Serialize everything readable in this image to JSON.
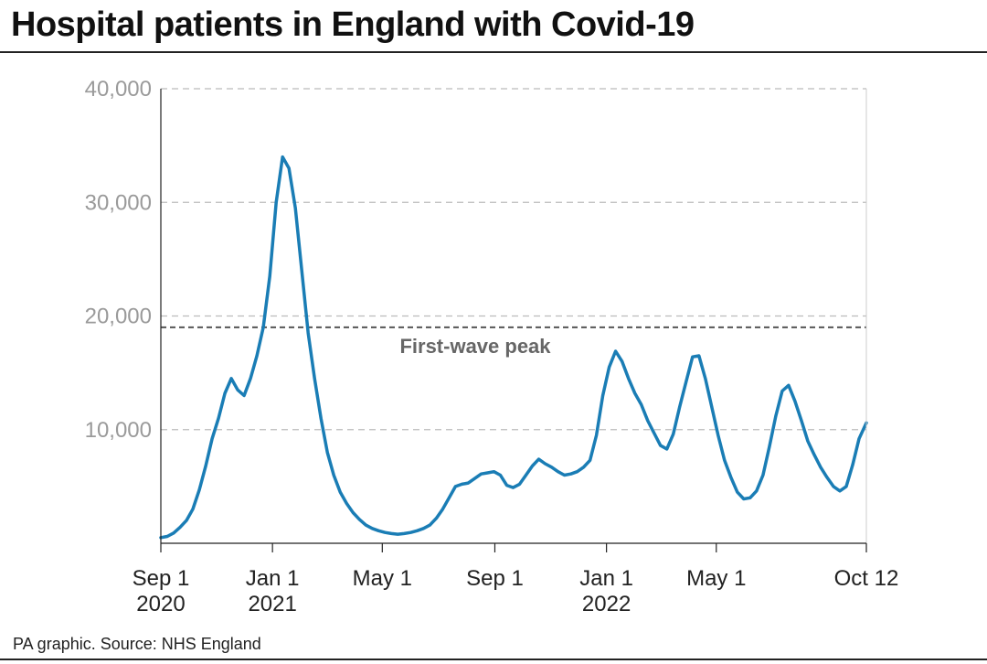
{
  "page": {
    "title": "Hospital patients in England with Covid-19",
    "source": "PA graphic. Source: NHS England"
  },
  "colors": {
    "line": "#1a7db5",
    "grid": "#bbbbbb",
    "reference": "#555555"
  },
  "chart_data": {
    "type": "line",
    "title": "Hospital patients in England with Covid-19",
    "xlabel": "",
    "ylabel": "",
    "ylim": [
      0,
      40000
    ],
    "xlim": [
      "2020-09-01",
      "2022-10-12"
    ],
    "y_ticks": [
      {
        "value": 10000,
        "label": "10,000"
      },
      {
        "value": 20000,
        "label": "20,000"
      },
      {
        "value": 30000,
        "label": "30,000"
      },
      {
        "value": 40000,
        "label": "40,000"
      }
    ],
    "x_ticks": [
      {
        "date": "2020-09-01",
        "lines": [
          "Sep 1",
          "2020"
        ]
      },
      {
        "date": "2021-01-01",
        "lines": [
          "Jan 1",
          "2021"
        ]
      },
      {
        "date": "2021-05-01",
        "lines": [
          "May 1"
        ]
      },
      {
        "date": "2021-09-01",
        "lines": [
          "Sep 1"
        ]
      },
      {
        "date": "2022-01-01",
        "lines": [
          "Jan 1",
          "2022"
        ]
      },
      {
        "date": "2022-05-01",
        "lines": [
          "May 1"
        ]
      },
      {
        "date": "2022-10-12",
        "lines": [
          "Oct 12"
        ]
      }
    ],
    "grid": true,
    "reference_line": {
      "value": 19000,
      "label": "First-wave peak"
    },
    "series": [
      {
        "points": [
          [
            "2020-09-01",
            500
          ],
          [
            "2020-09-08",
            600
          ],
          [
            "2020-09-15",
            900
          ],
          [
            "2020-09-22",
            1400
          ],
          [
            "2020-09-29",
            2000
          ],
          [
            "2020-10-06",
            3000
          ],
          [
            "2020-10-13",
            4700
          ],
          [
            "2020-10-20",
            6800
          ],
          [
            "2020-10-27",
            9200
          ],
          [
            "2020-11-03",
            11000
          ],
          [
            "2020-11-10",
            13200
          ],
          [
            "2020-11-17",
            14500
          ],
          [
            "2020-11-24",
            13500
          ],
          [
            "2020-12-01",
            13000
          ],
          [
            "2020-12-08",
            14500
          ],
          [
            "2020-12-15",
            16500
          ],
          [
            "2020-12-22",
            19000
          ],
          [
            "2020-12-29",
            23500
          ],
          [
            "2021-01-05",
            30000
          ],
          [
            "2021-01-12",
            34000
          ],
          [
            "2021-01-19",
            33000
          ],
          [
            "2021-01-26",
            29500
          ],
          [
            "2021-02-02",
            24000
          ],
          [
            "2021-02-09",
            18500
          ],
          [
            "2021-02-16",
            14500
          ],
          [
            "2021-02-23",
            11000
          ],
          [
            "2021-03-02",
            8000
          ],
          [
            "2021-03-09",
            6000
          ],
          [
            "2021-03-16",
            4500
          ],
          [
            "2021-03-23",
            3500
          ],
          [
            "2021-03-30",
            2700
          ],
          [
            "2021-04-06",
            2100
          ],
          [
            "2021-04-13",
            1600
          ],
          [
            "2021-04-20",
            1300
          ],
          [
            "2021-04-27",
            1100
          ],
          [
            "2021-05-04",
            950
          ],
          [
            "2021-05-11",
            850
          ],
          [
            "2021-05-18",
            800
          ],
          [
            "2021-05-25",
            850
          ],
          [
            "2021-06-01",
            950
          ],
          [
            "2021-06-08",
            1100
          ],
          [
            "2021-06-15",
            1300
          ],
          [
            "2021-06-22",
            1600
          ],
          [
            "2021-06-29",
            2200
          ],
          [
            "2021-07-06",
            3000
          ],
          [
            "2021-07-13",
            4000
          ],
          [
            "2021-07-20",
            5000
          ],
          [
            "2021-07-27",
            5200
          ],
          [
            "2021-08-03",
            5300
          ],
          [
            "2021-08-10",
            5700
          ],
          [
            "2021-08-17",
            6100
          ],
          [
            "2021-08-24",
            6200
          ],
          [
            "2021-08-31",
            6300
          ],
          [
            "2021-09-07",
            6000
          ],
          [
            "2021-09-14",
            5100
          ],
          [
            "2021-09-21",
            4900
          ],
          [
            "2021-09-28",
            5200
          ],
          [
            "2021-10-05",
            6000
          ],
          [
            "2021-10-12",
            6800
          ],
          [
            "2021-10-19",
            7400
          ],
          [
            "2021-10-26",
            7000
          ],
          [
            "2021-11-02",
            6700
          ],
          [
            "2021-11-09",
            6300
          ],
          [
            "2021-11-16",
            6000
          ],
          [
            "2021-11-23",
            6100
          ],
          [
            "2021-11-30",
            6300
          ],
          [
            "2021-12-07",
            6700
          ],
          [
            "2021-12-14",
            7300
          ],
          [
            "2021-12-21",
            9500
          ],
          [
            "2021-12-28",
            13000
          ],
          [
            "2022-01-04",
            15500
          ],
          [
            "2022-01-11",
            16900
          ],
          [
            "2022-01-18",
            16000
          ],
          [
            "2022-01-25",
            14500
          ],
          [
            "2022-02-01",
            13200
          ],
          [
            "2022-02-08",
            12200
          ],
          [
            "2022-02-15",
            10800
          ],
          [
            "2022-02-22",
            9700
          ],
          [
            "2022-03-01",
            8600
          ],
          [
            "2022-03-08",
            8300
          ],
          [
            "2022-03-15",
            9600
          ],
          [
            "2022-03-22",
            12000
          ],
          [
            "2022-03-29",
            14200
          ],
          [
            "2022-04-05",
            16400
          ],
          [
            "2022-04-12",
            16500
          ],
          [
            "2022-04-19",
            14500
          ],
          [
            "2022-04-26",
            12000
          ],
          [
            "2022-05-03",
            9500
          ],
          [
            "2022-05-10",
            7300
          ],
          [
            "2022-05-17",
            5800
          ],
          [
            "2022-05-24",
            4500
          ],
          [
            "2022-05-31",
            3900
          ],
          [
            "2022-06-07",
            4000
          ],
          [
            "2022-06-14",
            4600
          ],
          [
            "2022-06-21",
            6000
          ],
          [
            "2022-06-28",
            8500
          ],
          [
            "2022-07-05",
            11200
          ],
          [
            "2022-07-12",
            13400
          ],
          [
            "2022-07-19",
            13900
          ],
          [
            "2022-07-26",
            12500
          ],
          [
            "2022-08-02",
            10800
          ],
          [
            "2022-08-09",
            9000
          ],
          [
            "2022-08-16",
            7800
          ],
          [
            "2022-08-23",
            6700
          ],
          [
            "2022-08-30",
            5800
          ],
          [
            "2022-09-06",
            5000
          ],
          [
            "2022-09-13",
            4600
          ],
          [
            "2022-09-20",
            5000
          ],
          [
            "2022-09-27",
            6900
          ],
          [
            "2022-10-04",
            9200
          ],
          [
            "2022-10-12",
            10600
          ]
        ]
      }
    ]
  }
}
